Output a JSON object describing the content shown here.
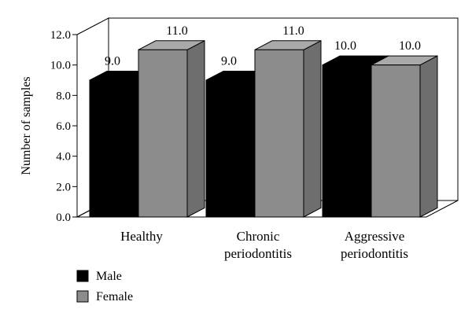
{
  "chart_data": {
    "type": "bar",
    "style": "3d-clustered",
    "title": "",
    "xlabel": "",
    "ylabel": "Number of samples",
    "ylim": [
      0,
      12
    ],
    "yticks": [
      "0.0",
      "2.0",
      "4.0",
      "6.0",
      "8.0",
      "10.0",
      "12.0"
    ],
    "categories": [
      [
        "Healthy"
      ],
      [
        "Chronic",
        "periodontitis"
      ],
      [
        "Aggressive",
        "periodontitis"
      ]
    ],
    "series": [
      {
        "name": "Male",
        "values": [
          9,
          9,
          10
        ],
        "labels": [
          "9.0",
          "9.0",
          "10.0"
        ],
        "color": "#000000",
        "side_color": "#000000",
        "top_color": "#000000"
      },
      {
        "name": "Female",
        "values": [
          11,
          11,
          10
        ],
        "labels": [
          "11.0",
          "11.0",
          "10.0"
        ],
        "color": "#8c8c8c",
        "side_color": "#6e6e6e",
        "top_color": "#a9a9a9"
      }
    ],
    "legend": "bottom-left",
    "grid": false
  }
}
